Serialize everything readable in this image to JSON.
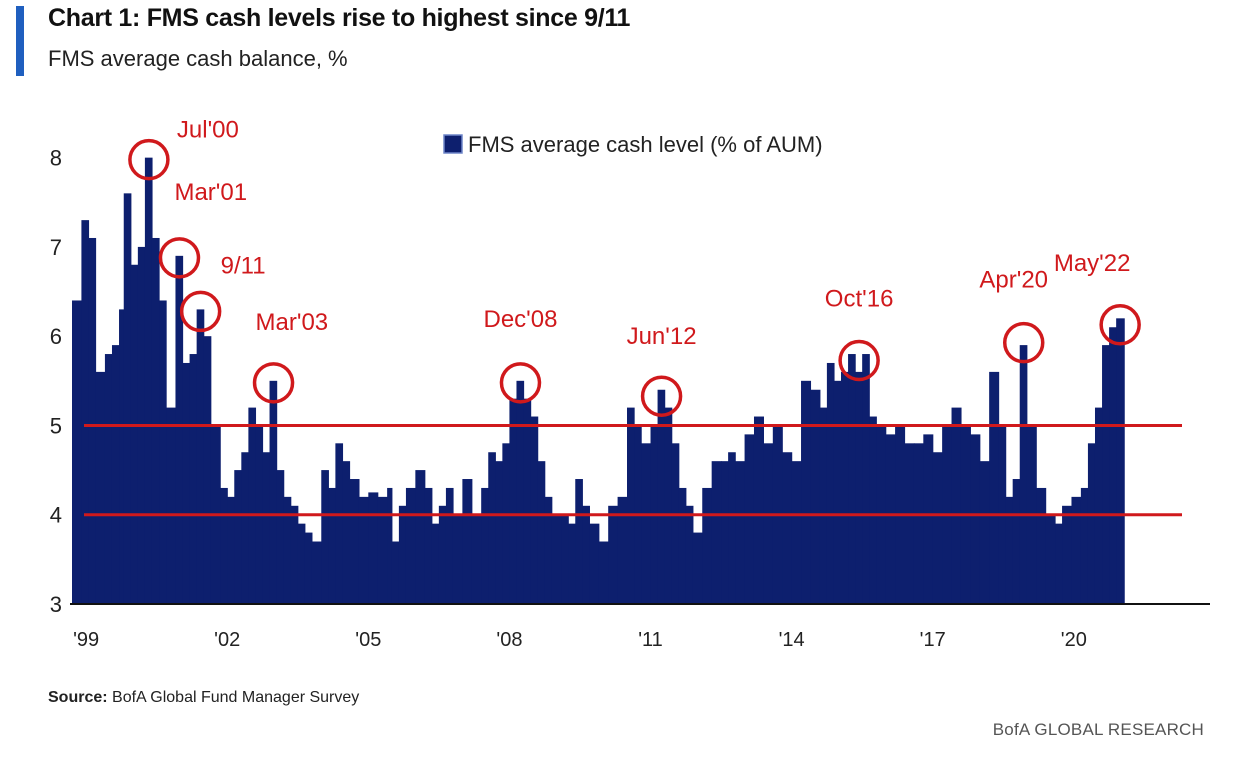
{
  "header": {
    "title": "Chart 1: FMS cash levels rise to highest since 9/11",
    "subtitle": "FMS average cash balance, %"
  },
  "footer": {
    "source_label": "Source:",
    "source_text": "BofA Global Fund Manager Survey",
    "brand": "BofA GLOBAL RESEARCH"
  },
  "colors": {
    "bar": "#0d1f6e",
    "annotation": "#d0191c",
    "accent": "#1f5fbf"
  },
  "chart_data": {
    "type": "bar",
    "title": "Chart 1: FMS cash levels rise to highest since 9/11",
    "subtitle": "FMS average cash balance, %",
    "legend": "FMS average cash level (% of AUM)",
    "ylim": [
      3,
      8.5
    ],
    "yticks": [
      3,
      4,
      5,
      6,
      7,
      8
    ],
    "xlim": [
      1999.0,
      2022.6
    ],
    "xticks": [
      {
        "label": "'99",
        "x": 1999.3
      },
      {
        "label": "'02",
        "x": 2002.3
      },
      {
        "label": "'05",
        "x": 2005.3
      },
      {
        "label": "'08",
        "x": 2008.3
      },
      {
        "label": "'11",
        "x": 2011.3
      },
      {
        "label": "'14",
        "x": 2014.3
      },
      {
        "label": "'17",
        "x": 2017.3
      },
      {
        "label": "'20",
        "x": 2020.3
      }
    ],
    "reference_lines": [
      4.0,
      5.0
    ],
    "series_points": [
      [
        1999.0,
        6.4
      ],
      [
        1999.2,
        7.3
      ],
      [
        1999.35,
        7.1
      ],
      [
        1999.5,
        5.6
      ],
      [
        1999.7,
        5.8
      ],
      [
        1999.85,
        5.9
      ],
      [
        2000.0,
        6.3
      ],
      [
        2000.1,
        7.6
      ],
      [
        2000.25,
        6.8
      ],
      [
        2000.4,
        7.0
      ],
      [
        2000.55,
        8.0
      ],
      [
        2000.7,
        7.1
      ],
      [
        2000.85,
        6.4
      ],
      [
        2001.0,
        5.2
      ],
      [
        2001.2,
        6.9
      ],
      [
        2001.35,
        5.7
      ],
      [
        2001.5,
        5.8
      ],
      [
        2001.65,
        6.3
      ],
      [
        2001.8,
        6.0
      ],
      [
        2001.95,
        5.0
      ],
      [
        2002.15,
        4.3
      ],
      [
        2002.3,
        4.2
      ],
      [
        2002.45,
        4.5
      ],
      [
        2002.6,
        4.7
      ],
      [
        2002.75,
        5.2
      ],
      [
        2002.9,
        5.0
      ],
      [
        2003.05,
        4.7
      ],
      [
        2003.2,
        5.5
      ],
      [
        2003.35,
        4.5
      ],
      [
        2003.5,
        4.2
      ],
      [
        2003.65,
        4.1
      ],
      [
        2003.8,
        3.9
      ],
      [
        2003.95,
        3.8
      ],
      [
        2004.1,
        3.7
      ],
      [
        2004.3,
        4.5
      ],
      [
        2004.45,
        4.3
      ],
      [
        2004.6,
        4.8
      ],
      [
        2004.75,
        4.6
      ],
      [
        2004.9,
        4.4
      ],
      [
        2005.1,
        4.2
      ],
      [
        2005.3,
        4.25
      ],
      [
        2005.5,
        4.2
      ],
      [
        2005.7,
        4.3
      ],
      [
        2005.8,
        3.7
      ],
      [
        2005.95,
        4.1
      ],
      [
        2006.1,
        4.3
      ],
      [
        2006.3,
        4.5
      ],
      [
        2006.5,
        4.3
      ],
      [
        2006.65,
        3.9
      ],
      [
        2006.8,
        4.1
      ],
      [
        2006.95,
        4.3
      ],
      [
        2007.1,
        4.0
      ],
      [
        2007.3,
        4.4
      ],
      [
        2007.5,
        4.0
      ],
      [
        2007.7,
        4.3
      ],
      [
        2007.85,
        4.7
      ],
      [
        2008.0,
        4.6
      ],
      [
        2008.15,
        4.8
      ],
      [
        2008.3,
        5.3
      ],
      [
        2008.45,
        5.5
      ],
      [
        2008.6,
        5.3
      ],
      [
        2008.75,
        5.1
      ],
      [
        2008.9,
        4.6
      ],
      [
        2009.05,
        4.2
      ],
      [
        2009.2,
        4.0
      ],
      [
        2009.4,
        4.0
      ],
      [
        2009.55,
        3.9
      ],
      [
        2009.7,
        4.4
      ],
      [
        2009.85,
        4.1
      ],
      [
        2010.0,
        3.9
      ],
      [
        2010.2,
        3.7
      ],
      [
        2010.4,
        4.1
      ],
      [
        2010.6,
        4.2
      ],
      [
        2010.8,
        5.2
      ],
      [
        2010.95,
        5.0
      ],
      [
        2011.1,
        4.8
      ],
      [
        2011.3,
        5.0
      ],
      [
        2011.45,
        5.4
      ],
      [
        2011.6,
        5.2
      ],
      [
        2011.75,
        4.8
      ],
      [
        2011.9,
        4.3
      ],
      [
        2012.05,
        4.1
      ],
      [
        2012.2,
        3.8
      ],
      [
        2012.4,
        4.3
      ],
      [
        2012.6,
        4.6
      ],
      [
        2012.8,
        4.6
      ],
      [
        2012.95,
        4.7
      ],
      [
        2013.1,
        4.6
      ],
      [
        2013.3,
        4.9
      ],
      [
        2013.5,
        5.1
      ],
      [
        2013.7,
        4.8
      ],
      [
        2013.9,
        5.0
      ],
      [
        2014.1,
        4.7
      ],
      [
        2014.3,
        4.6
      ],
      [
        2014.5,
        5.5
      ],
      [
        2014.7,
        5.4
      ],
      [
        2014.9,
        5.2
      ],
      [
        2015.05,
        5.7
      ],
      [
        2015.2,
        5.5
      ],
      [
        2015.35,
        5.6
      ],
      [
        2015.5,
        5.8
      ],
      [
        2015.65,
        5.6
      ],
      [
        2015.8,
        5.8
      ],
      [
        2015.95,
        5.1
      ],
      [
        2016.1,
        5.0
      ],
      [
        2016.3,
        4.9
      ],
      [
        2016.5,
        5.0
      ],
      [
        2016.7,
        4.8
      ],
      [
        2016.9,
        4.8
      ],
      [
        2017.1,
        4.9
      ],
      [
        2017.3,
        4.7
      ],
      [
        2017.5,
        5.0
      ],
      [
        2017.7,
        5.2
      ],
      [
        2017.9,
        5.0
      ],
      [
        2018.1,
        4.9
      ],
      [
        2018.3,
        4.6
      ],
      [
        2018.5,
        5.6
      ],
      [
        2018.7,
        5.0
      ],
      [
        2018.85,
        4.2
      ],
      [
        2019.0,
        4.4
      ],
      [
        2019.15,
        5.9
      ],
      [
        2019.3,
        5.0
      ],
      [
        2019.5,
        4.3
      ],
      [
        2019.7,
        4.0
      ],
      [
        2019.9,
        3.9
      ],
      [
        2020.05,
        4.1
      ],
      [
        2020.25,
        4.2
      ],
      [
        2020.45,
        4.3
      ],
      [
        2020.6,
        4.8
      ],
      [
        2020.75,
        5.2
      ],
      [
        2020.9,
        5.9
      ],
      [
        2021.05,
        6.1
      ],
      [
        2021.2,
        6.2
      ]
    ],
    "annotations": [
      {
        "label": "Jul'00",
        "x": 2000.55,
        "y": 8.0
      },
      {
        "label": "Mar'01",
        "x": 2001.2,
        "y": 6.9
      },
      {
        "label": "9/11",
        "x": 2001.65,
        "y": 6.3
      },
      {
        "label": "Mar'03",
        "x": 2003.2,
        "y": 5.5
      },
      {
        "label": "Dec'08",
        "x": 2008.45,
        "y": 5.5
      },
      {
        "label": "Jun'12",
        "x": 2011.45,
        "y": 5.35
      },
      {
        "label": "Oct'16",
        "x": 2015.65,
        "y": 5.75
      },
      {
        "label": "Apr'20",
        "x": 2019.15,
        "y": 5.95
      },
      {
        "label": "May'22",
        "x": 2021.2,
        "y": 6.15
      }
    ]
  }
}
